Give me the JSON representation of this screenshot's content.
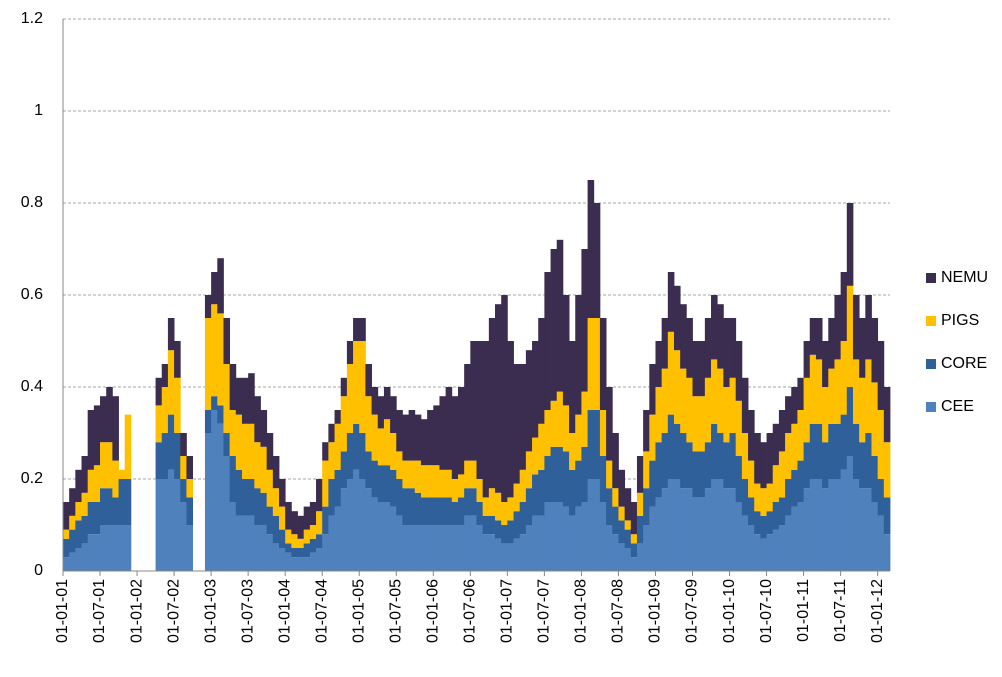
{
  "chart_data": {
    "type": "stacked_bar",
    "categories": [
      "01-01-01",
      null,
      null,
      null,
      null,
      null,
      "01-07-01",
      null,
      null,
      null,
      null,
      null,
      "01-01-02",
      null,
      null,
      null,
      null,
      null,
      "01-07-02",
      null,
      null,
      null,
      null,
      null,
      "01-01-03",
      null,
      null,
      null,
      null,
      null,
      "01-07-03",
      null,
      null,
      null,
      null,
      null,
      "01-01-04",
      null,
      null,
      null,
      null,
      null,
      "01-07-04",
      null,
      null,
      null,
      null,
      null,
      "01-01-05",
      null,
      null,
      null,
      null,
      null,
      "01-07-05",
      null,
      null,
      null,
      null,
      null,
      "01-01-06",
      null,
      null,
      null,
      null,
      null,
      "01-07-06",
      null,
      null,
      null,
      null,
      null,
      "01-01-07",
      null,
      null,
      null,
      null,
      null,
      "01-07-07",
      null,
      null,
      null,
      null,
      null,
      "01-01-08",
      null,
      null,
      null,
      null,
      null,
      "01-07-08",
      null,
      null,
      null,
      null,
      null,
      "01-01-09",
      null,
      null,
      null,
      null,
      null,
      "01-07-09",
      null,
      null,
      null,
      null,
      null,
      "01-01-10",
      null,
      null,
      null,
      null,
      null,
      "01-07-10",
      null,
      null,
      null,
      null,
      null,
      "01-01-11",
      null,
      null,
      null,
      null,
      null,
      "01-07-11",
      null,
      null,
      null,
      null,
      null,
      "01-01-12",
      null
    ],
    "series": [
      {
        "name": "CEE",
        "color": "#4f81bd",
        "values": [
          0.03,
          0.04,
          0.05,
          0.06,
          0.08,
          0.08,
          0.1,
          0.1,
          0.1,
          0.1,
          0.1,
          null,
          null,
          null,
          null,
          0.2,
          0.2,
          0.22,
          0.2,
          0.15,
          0.1,
          null,
          null,
          0.3,
          0.35,
          0.32,
          0.25,
          0.15,
          0.12,
          0.12,
          0.12,
          0.1,
          0.1,
          0.08,
          0.06,
          0.05,
          0.04,
          0.03,
          0.03,
          0.03,
          0.04,
          0.05,
          0.08,
          0.12,
          0.14,
          0.18,
          0.2,
          0.22,
          0.2,
          0.18,
          0.16,
          0.15,
          0.15,
          0.14,
          0.12,
          0.1,
          0.1,
          0.1,
          0.1,
          0.1,
          0.1,
          0.1,
          0.1,
          0.1,
          0.1,
          0.12,
          0.12,
          0.1,
          0.08,
          0.08,
          0.07,
          0.06,
          0.06,
          0.07,
          0.08,
          0.1,
          0.12,
          0.12,
          0.15,
          0.15,
          0.15,
          0.14,
          0.12,
          0.14,
          0.15,
          0.2,
          0.2,
          0.15,
          0.1,
          0.08,
          0.06,
          0.05,
          0.03,
          0.06,
          0.1,
          0.14,
          0.16,
          0.18,
          0.2,
          0.2,
          0.18,
          0.18,
          0.16,
          0.16,
          0.18,
          0.2,
          0.2,
          0.18,
          0.18,
          0.15,
          0.12,
          0.1,
          0.08,
          0.07,
          0.08,
          0.09,
          0.1,
          0.12,
          0.14,
          0.15,
          0.18,
          0.2,
          0.2,
          0.18,
          0.2,
          0.2,
          0.22,
          0.25,
          0.2,
          0.18,
          0.18,
          0.15,
          0.12,
          0.08
        ]
      },
      {
        "name": "CORE",
        "color": "#30609a",
        "values": [
          0.04,
          0.05,
          0.06,
          0.06,
          0.07,
          0.07,
          0.08,
          0.08,
          0.06,
          0.1,
          0.1,
          null,
          null,
          null,
          null,
          0.08,
          0.1,
          0.12,
          0.1,
          0.05,
          0.06,
          null,
          null,
          0.05,
          0.03,
          0.04,
          0.05,
          0.1,
          0.1,
          0.08,
          0.08,
          0.08,
          0.07,
          0.06,
          0.06,
          0.04,
          0.02,
          0.02,
          0.02,
          0.03,
          0.03,
          0.03,
          0.06,
          0.08,
          0.08,
          0.08,
          0.1,
          0.1,
          0.1,
          0.08,
          0.08,
          0.08,
          0.08,
          0.08,
          0.08,
          0.08,
          0.08,
          0.07,
          0.06,
          0.06,
          0.06,
          0.06,
          0.06,
          0.05,
          0.06,
          0.06,
          0.06,
          0.05,
          0.04,
          0.04,
          0.04,
          0.04,
          0.05,
          0.06,
          0.07,
          0.08,
          0.09,
          0.1,
          0.1,
          0.12,
          0.12,
          0.12,
          0.1,
          0.1,
          0.12,
          0.15,
          0.15,
          0.1,
          0.08,
          0.06,
          0.05,
          0.04,
          0.03,
          0.06,
          0.08,
          0.1,
          0.12,
          0.12,
          0.14,
          0.12,
          0.12,
          0.1,
          0.1,
          0.1,
          0.1,
          0.12,
          0.1,
          0.1,
          0.12,
          0.1,
          0.08,
          0.06,
          0.05,
          0.05,
          0.05,
          0.06,
          0.06,
          0.08,
          0.08,
          0.09,
          0.1,
          0.12,
          0.12,
          0.1,
          0.12,
          0.12,
          0.12,
          0.15,
          0.12,
          0.1,
          0.12,
          0.1,
          0.08,
          0.08
        ]
      },
      {
        "name": "PIGS",
        "color": "#ffc000",
        "values": [
          0.02,
          0.03,
          0.04,
          0.05,
          0.07,
          0.08,
          0.1,
          0.1,
          0.08,
          0.02,
          0.14,
          null,
          null,
          null,
          null,
          0.08,
          0.1,
          0.14,
          0.12,
          0.05,
          0.04,
          null,
          null,
          0.2,
          0.2,
          0.2,
          0.15,
          0.1,
          0.12,
          0.12,
          0.12,
          0.1,
          0.1,
          0.08,
          0.06,
          0.05,
          0.03,
          0.03,
          0.02,
          0.03,
          0.03,
          0.05,
          0.1,
          0.08,
          0.1,
          0.12,
          0.15,
          0.18,
          0.2,
          0.12,
          0.1,
          0.08,
          0.1,
          0.08,
          0.06,
          0.06,
          0.06,
          0.07,
          0.07,
          0.07,
          0.07,
          0.06,
          0.06,
          0.05,
          0.05,
          0.06,
          0.06,
          0.05,
          0.04,
          0.06,
          0.06,
          0.05,
          0.05,
          0.06,
          0.07,
          0.08,
          0.08,
          0.1,
          0.1,
          0.1,
          0.12,
          0.1,
          0.08,
          0.1,
          0.12,
          0.2,
          0.2,
          0.1,
          0.06,
          0.04,
          0.03,
          0.02,
          0.02,
          0.05,
          0.08,
          0.1,
          0.12,
          0.14,
          0.18,
          0.16,
          0.14,
          0.14,
          0.12,
          0.12,
          0.14,
          0.14,
          0.14,
          0.12,
          0.12,
          0.12,
          0.1,
          0.08,
          0.06,
          0.06,
          0.06,
          0.08,
          0.1,
          0.1,
          0.1,
          0.11,
          0.14,
          0.15,
          0.14,
          0.12,
          0.12,
          0.14,
          0.16,
          0.22,
          0.14,
          0.14,
          0.16,
          0.16,
          0.15,
          0.12
        ]
      },
      {
        "name": "NEMU",
        "color": "#3b2d4f",
        "values": [
          0.06,
          0.06,
          0.07,
          0.08,
          0.13,
          0.13,
          0.1,
          0.12,
          0.14,
          0,
          0,
          null,
          null,
          null,
          null,
          0.06,
          0.05,
          0.07,
          0.08,
          0.05,
          0.05,
          null,
          null,
          0.05,
          0.07,
          0.12,
          0.1,
          0.1,
          0.08,
          0.1,
          0.11,
          0.1,
          0.08,
          0.08,
          0.07,
          0.06,
          0.06,
          0.05,
          0.05,
          0.05,
          0.05,
          0.07,
          0.04,
          0.04,
          0.03,
          0.04,
          0.05,
          0.05,
          0.05,
          0.07,
          0.06,
          0.07,
          0.07,
          0.08,
          0.09,
          0.1,
          0.11,
          0.1,
          0.1,
          0.12,
          0.13,
          0.16,
          0.18,
          0.18,
          0.19,
          0.21,
          0.26,
          0.3,
          0.34,
          0.37,
          0.41,
          0.45,
          0.34,
          0.26,
          0.23,
          0.22,
          0.21,
          0.23,
          0.3,
          0.33,
          0.33,
          0.24,
          0.2,
          0.26,
          0.31,
          0.3,
          0.25,
          0.2,
          0.16,
          0.12,
          0.08,
          0.07,
          0.07,
          0.08,
          0.09,
          0.11,
          0.1,
          0.11,
          0.13,
          0.14,
          0.14,
          0.13,
          0.12,
          0.12,
          0.13,
          0.14,
          0.14,
          0.15,
          0.13,
          0.13,
          0.12,
          0.11,
          0.11,
          0.1,
          0.11,
          0.09,
          0.09,
          0.08,
          0.08,
          0.07,
          0.08,
          0.08,
          0.09,
          0.1,
          0.11,
          0.14,
          0.15,
          0.18,
          0.14,
          0.13,
          0.14,
          0.14,
          0.15,
          0.12
        ]
      }
    ],
    "ylim": [
      0,
      1.2
    ],
    "yticks": [
      0,
      0.2,
      0.4,
      0.6,
      0.8,
      1,
      1.2
    ],
    "grid": true,
    "legend": "right"
  }
}
